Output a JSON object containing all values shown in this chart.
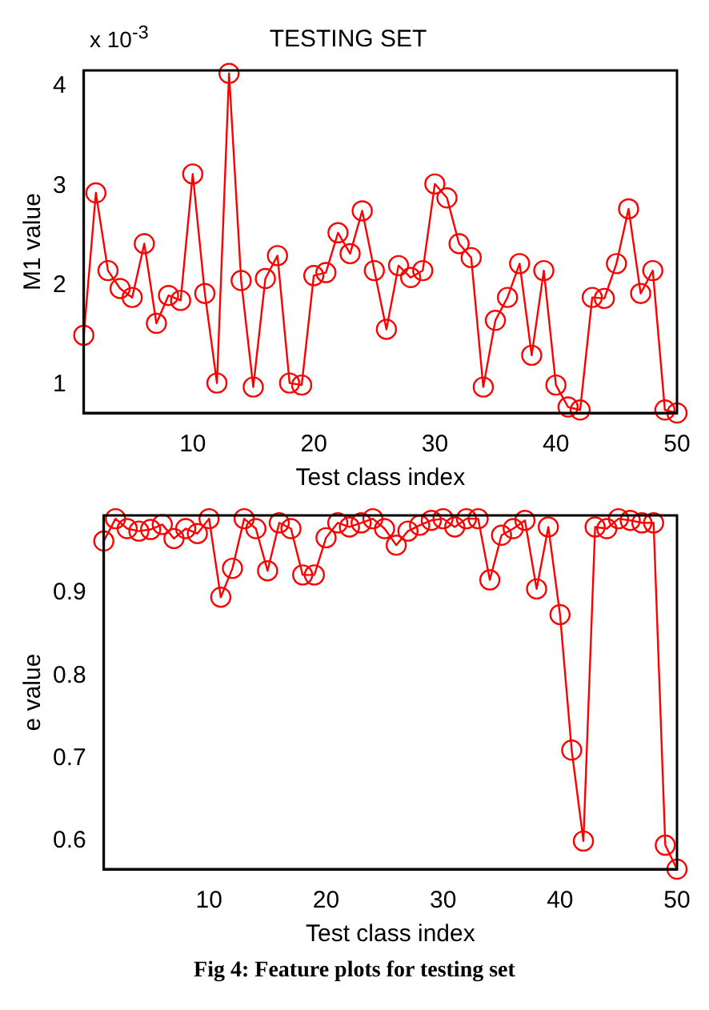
{
  "chart_data": [
    {
      "type": "line",
      "title": "TESTING SET",
      "xlabel": "Test class index",
      "ylabel": "M1 value",
      "annotations": [
        "x 10$^{-3}$"
      ],
      "marker": "circle",
      "line_style": "solid",
      "grid": false,
      "color": "#ff0000",
      "x": [
        1,
        2,
        3,
        4,
        5,
        6,
        7,
        8,
        9,
        10,
        11,
        12,
        13,
        14,
        15,
        16,
        17,
        18,
        19,
        20,
        21,
        22,
        23,
        24,
        25,
        26,
        27,
        28,
        29,
        30,
        31,
        32,
        33,
        34,
        35,
        36,
        37,
        38,
        39,
        40,
        41,
        42,
        43,
        44,
        45,
        46,
        47,
        48,
        49,
        50
      ],
      "values": [
        1.5,
        2.93,
        2.15,
        1.97,
        1.88,
        2.42,
        1.62,
        1.9,
        1.85,
        3.12,
        1.92,
        1.02,
        4.13,
        2.05,
        0.98,
        2.07,
        2.3,
        1.02,
        1.0,
        2.1,
        2.13,
        2.53,
        2.32,
        2.75,
        2.15,
        1.56,
        2.2,
        2.08,
        2.15,
        3.02,
        2.88,
        2.42,
        2.28,
        0.98,
        1.65,
        1.88,
        2.22,
        1.3,
        2.15,
        1.0,
        0.78,
        0.75,
        1.88,
        1.87,
        2.22,
        2.77,
        1.92,
        2.15,
        0.75,
        0.72
      ],
      "xlim": [
        1,
        50
      ],
      "xticks": [
        10,
        20,
        30,
        40,
        50
      ],
      "ylim": [
        0.72,
        4.16
      ],
      "yticks": [
        1,
        2,
        3,
        4
      ]
    },
    {
      "type": "line",
      "xlabel": "Test class index",
      "ylabel": "e value",
      "annotations": [
        "Fig 4: Feature plots for testing set"
      ],
      "marker": "circle",
      "line_style": "solid",
      "grid": false,
      "color": "#ff0000",
      "x": [
        1,
        2,
        3,
        4,
        5,
        6,
        7,
        8,
        9,
        10,
        11,
        12,
        13,
        14,
        15,
        16,
        17,
        18,
        19,
        20,
        21,
        22,
        23,
        24,
        25,
        26,
        27,
        28,
        29,
        30,
        31,
        32,
        33,
        34,
        35,
        36,
        37,
        38,
        39,
        40,
        41,
        42,
        43,
        44,
        45,
        46,
        47,
        48,
        49,
        50
      ],
      "values": [
        0.963,
        0.99,
        0.978,
        0.975,
        0.977,
        0.983,
        0.966,
        0.978,
        0.972,
        0.99,
        0.895,
        0.93,
        0.99,
        0.978,
        0.927,
        0.985,
        0.978,
        0.922,
        0.922,
        0.967,
        0.985,
        0.98,
        0.985,
        0.99,
        0.978,
        0.958,
        0.975,
        0.982,
        0.988,
        0.99,
        0.98,
        0.99,
        0.99,
        0.916,
        0.97,
        0.978,
        0.988,
        0.905,
        0.98,
        0.874,
        0.71,
        0.6,
        0.98,
        0.978,
        0.99,
        0.988,
        0.985,
        0.985,
        0.595,
        0.566
      ],
      "xlim": [
        1,
        50
      ],
      "xticks": [
        10,
        20,
        30,
        40,
        50
      ],
      "ylim": [
        0.566,
        0.994
      ],
      "yticks": [
        0.6,
        0.7,
        0.8,
        0.9
      ]
    }
  ]
}
